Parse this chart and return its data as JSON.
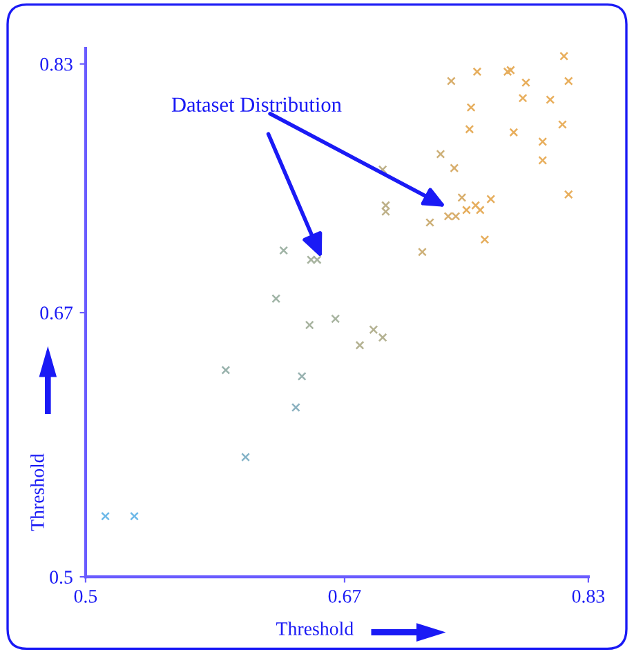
{
  "chart_data": {
    "type": "scatter",
    "xlabel": "Threshold",
    "ylabel": "Threshold",
    "annotations": [
      {
        "text": "Dataset Distribution",
        "x": 0.655,
        "y": 0.705
      }
    ],
    "x": [
      0.814,
      0.757,
      0.779,
      0.777,
      0.74,
      0.789,
      0.817,
      0.787,
      0.805,
      0.753,
      0.813,
      0.752,
      0.781,
      0.8,
      0.733,
      0.8,
      0.742,
      0.695,
      0.817,
      0.747,
      0.766,
      0.697,
      0.697,
      0.75,
      0.756,
      0.759,
      0.738,
      0.743,
      0.726,
      0.762,
      0.721,
      0.63,
      0.648,
      0.652,
      0.625,
      0.647,
      0.664,
      0.689,
      0.695,
      0.68,
      0.592,
      0.642,
      0.638,
      0.605,
      0.513,
      0.532
    ],
    "values": [
      0.835,
      0.825,
      0.826,
      0.825,
      0.819,
      0.818,
      0.819,
      0.808,
      0.807,
      0.802,
      0.791,
      0.788,
      0.786,
      0.78,
      0.772,
      0.768,
      0.763,
      0.762,
      0.746,
      0.744,
      0.743,
      0.739,
      0.735,
      0.736,
      0.739,
      0.736,
      0.732,
      0.732,
      0.728,
      0.717,
      0.709,
      0.71,
      0.704,
      0.704,
      0.679,
      0.662,
      0.666,
      0.659,
      0.654,
      0.649,
      0.633,
      0.629,
      0.609,
      0.577,
      0.539,
      0.539
    ],
    "colors": [
      "#e8ae5c",
      "#e6ae5e",
      "#e6ae5e",
      "#e6ae5e",
      "#d8ae6c",
      "#e8ae5c",
      "#e8ae5c",
      "#e8ae5c",
      "#e8ae5c",
      "#e6ae5e",
      "#e8ae5c",
      "#e6ae5e",
      "#e8ae5c",
      "#e8ae5c",
      "#cdb078",
      "#e8ae5c",
      "#d8ae6c",
      "#bdb088",
      "#e8ae5c",
      "#d8ae6c",
      "#e6ae5e",
      "#bdb088",
      "#bdb088",
      "#e6ae5e",
      "#e6ae5e",
      "#e6ae5e",
      "#d8ae6c",
      "#d8ae6c",
      "#cdb078",
      "#e6ae5e",
      "#cdb078",
      "#a0b4a6",
      "#a8b4a0",
      "#a8b4a0",
      "#a0b4a6",
      "#a8b4a0",
      "#a8b4a0",
      "#b4b292",
      "#b4b292",
      "#b4b292",
      "#98b2ac",
      "#98b2b0",
      "#8cb2c0",
      "#86b4c8",
      "#6cb8e8",
      "#6cb8e8"
    ],
    "marker": "cross",
    "xlim": [
      0.5,
      0.83
    ],
    "ylim": [
      0.5,
      0.84
    ],
    "xticks": [
      0.5,
      0.67,
      0.83
    ],
    "yticks": [
      0.5,
      0.67,
      0.83
    ],
    "grid": false
  }
}
